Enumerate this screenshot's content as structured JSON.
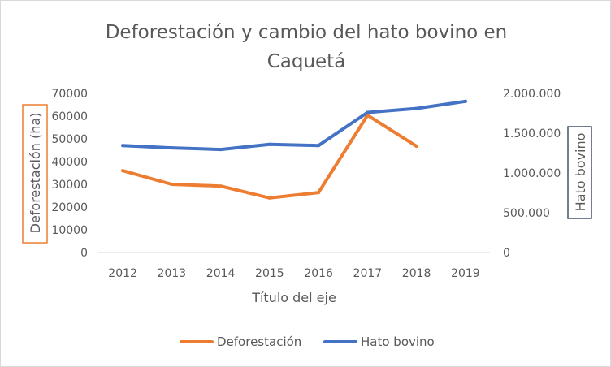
{
  "chart_data": {
    "type": "line",
    "title": "Deforestación y cambio del hato bovino en Caquetá",
    "title_lines": [
      "Deforestación y cambio del hato bovino en",
      "Caquetá"
    ],
    "xlabel": "Título del eje",
    "ylabel_left": "Deforestación (ha)",
    "ylabel_right": "Hato bovino",
    "categories": [
      "2012",
      "2013",
      "2014",
      "2015",
      "2016",
      "2017",
      "2018",
      "2019"
    ],
    "y_left": {
      "range": [
        0,
        70000
      ],
      "ticks": [
        "0",
        "10000",
        "20000",
        "30000",
        "40000",
        "50000",
        "60000",
        "70000"
      ]
    },
    "y_right": {
      "range": [
        0,
        2000000
      ],
      "ticks": [
        "0",
        "500.000",
        "1.000.000",
        "1.500.000",
        "2.000.000"
      ]
    },
    "series": [
      {
        "name": "Deforestación",
        "axis": "left",
        "color": "#ED7D31",
        "values": [
          36000,
          30000,
          29200,
          24000,
          26400,
          60400,
          46800,
          null
        ]
      },
      {
        "name": "Hato bovino",
        "axis": "right",
        "color": "#4472C4",
        "values": [
          1345000,
          1315000,
          1295000,
          1360000,
          1345000,
          1760000,
          1810000,
          1900000
        ]
      }
    ],
    "grid": false,
    "legend_position": "bottom",
    "axis_title_box_colors": {
      "left": "#ED7D31",
      "right": "#44546A"
    }
  }
}
